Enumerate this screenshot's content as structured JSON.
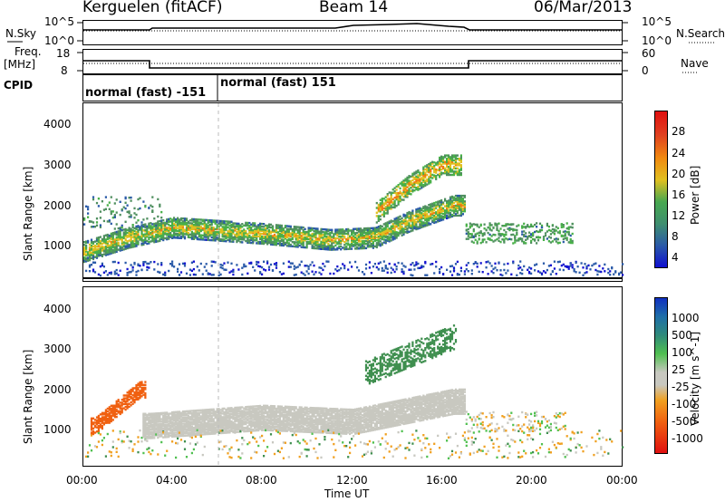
{
  "header": {
    "station": "Kerguelen (fitACF)",
    "beam": "Beam 14",
    "date": "06/Mar/2013"
  },
  "summary": {
    "nsky_label": "N.Sky",
    "nsky_ticks": [
      "10^5",
      "10^0"
    ],
    "nsearch_label": "N.Search",
    "nsearch_ticks": [
      "10^5",
      "10^0"
    ],
    "freq_label": "Freq.",
    "freq_unit": "[MHz]",
    "freq_ticks": [
      "18",
      "8"
    ],
    "nave_label": "Nave",
    "nave_ticks": [
      "60",
      "0"
    ],
    "cpid_label": "CPID",
    "cpid_segments": [
      "normal (fast) -151",
      "normal (fast) 151"
    ]
  },
  "chart_data": [
    {
      "type": "heatmap",
      "title": "",
      "xlabel": "Time UT",
      "ylabel": "Slant Range [km]",
      "xlim": [
        "00:00",
        "24:00"
      ],
      "x_ticks": [
        "00:00",
        "04:00",
        "08:00",
        "12:00",
        "16:00",
        "20:00",
        "00:00"
      ],
      "ylim": [
        180,
        4500
      ],
      "y_ticks": [
        1000,
        2000,
        3000,
        4000
      ],
      "colorbar": {
        "label": "Power [dB]",
        "ticks": [
          4,
          8,
          12,
          16,
          20,
          24,
          28
        ],
        "range": [
          0,
          30
        ]
      },
      "colors": [
        "#1010d0",
        "#2a5aa8",
        "#4f8f5f",
        "#48b048",
        "#e0c020",
        "#f07a10",
        "#e02020"
      ],
      "features": [
        {
          "name": "main band",
          "time_h": [
            0,
            2,
            4,
            8,
            11,
            13,
            14.5,
            16.5
          ],
          "range_km": [
            850,
            1200,
            1450,
            1300,
            1150,
            1200,
            1600,
            2000
          ],
          "power_db": 20
        },
        {
          "name": "upper arc",
          "time_h": [
            13,
            14.5,
            16
          ],
          "range_km": [
            1800,
            2500,
            3000
          ],
          "power_db": 22
        },
        {
          "name": "evening echoes",
          "time_h": [
            17,
            21.5
          ],
          "range_km": [
            1300,
            1400
          ],
          "power_db": 12
        }
      ]
    },
    {
      "type": "heatmap",
      "title": "",
      "xlabel": "Time UT",
      "ylabel": "Slant Range [km]",
      "xlim": [
        "00:00",
        "24:00"
      ],
      "x_ticks": [
        "00:00",
        "04:00",
        "08:00",
        "12:00",
        "16:00",
        "20:00",
        "00:00"
      ],
      "ylim": [
        180,
        4500
      ],
      "y_ticks": [
        1000,
        2000,
        3000,
        4000
      ],
      "colorbar": {
        "label": "Velocity [m s^-1]",
        "ticks": [
          "1000",
          "500",
          "100",
          "25",
          "-25",
          "-100",
          "-500",
          "-1000"
        ]
      },
      "colors": [
        "#1030c0",
        "#2f7a9a",
        "#3f8f4f",
        "#50c050",
        "#c8c8c0",
        "#f0a020",
        "#f06010",
        "#e01010"
      ],
      "features": [
        {
          "name": "ground scatter band",
          "time_h": [
            3,
            8,
            12,
            16.5
          ],
          "range_km": [
            1100,
            1300,
            1200,
            1700
          ],
          "velocity": 0
        },
        {
          "name": "morning flow",
          "time_h": [
            0.5,
            2.5
          ],
          "range_km": [
            1100,
            2000
          ],
          "velocity": -300
        },
        {
          "name": "afternoon flow",
          "time_h": [
            12.5,
            16.5
          ],
          "range_km": [
            2400,
            3300
          ],
          "velocity": 120
        }
      ]
    }
  ]
}
